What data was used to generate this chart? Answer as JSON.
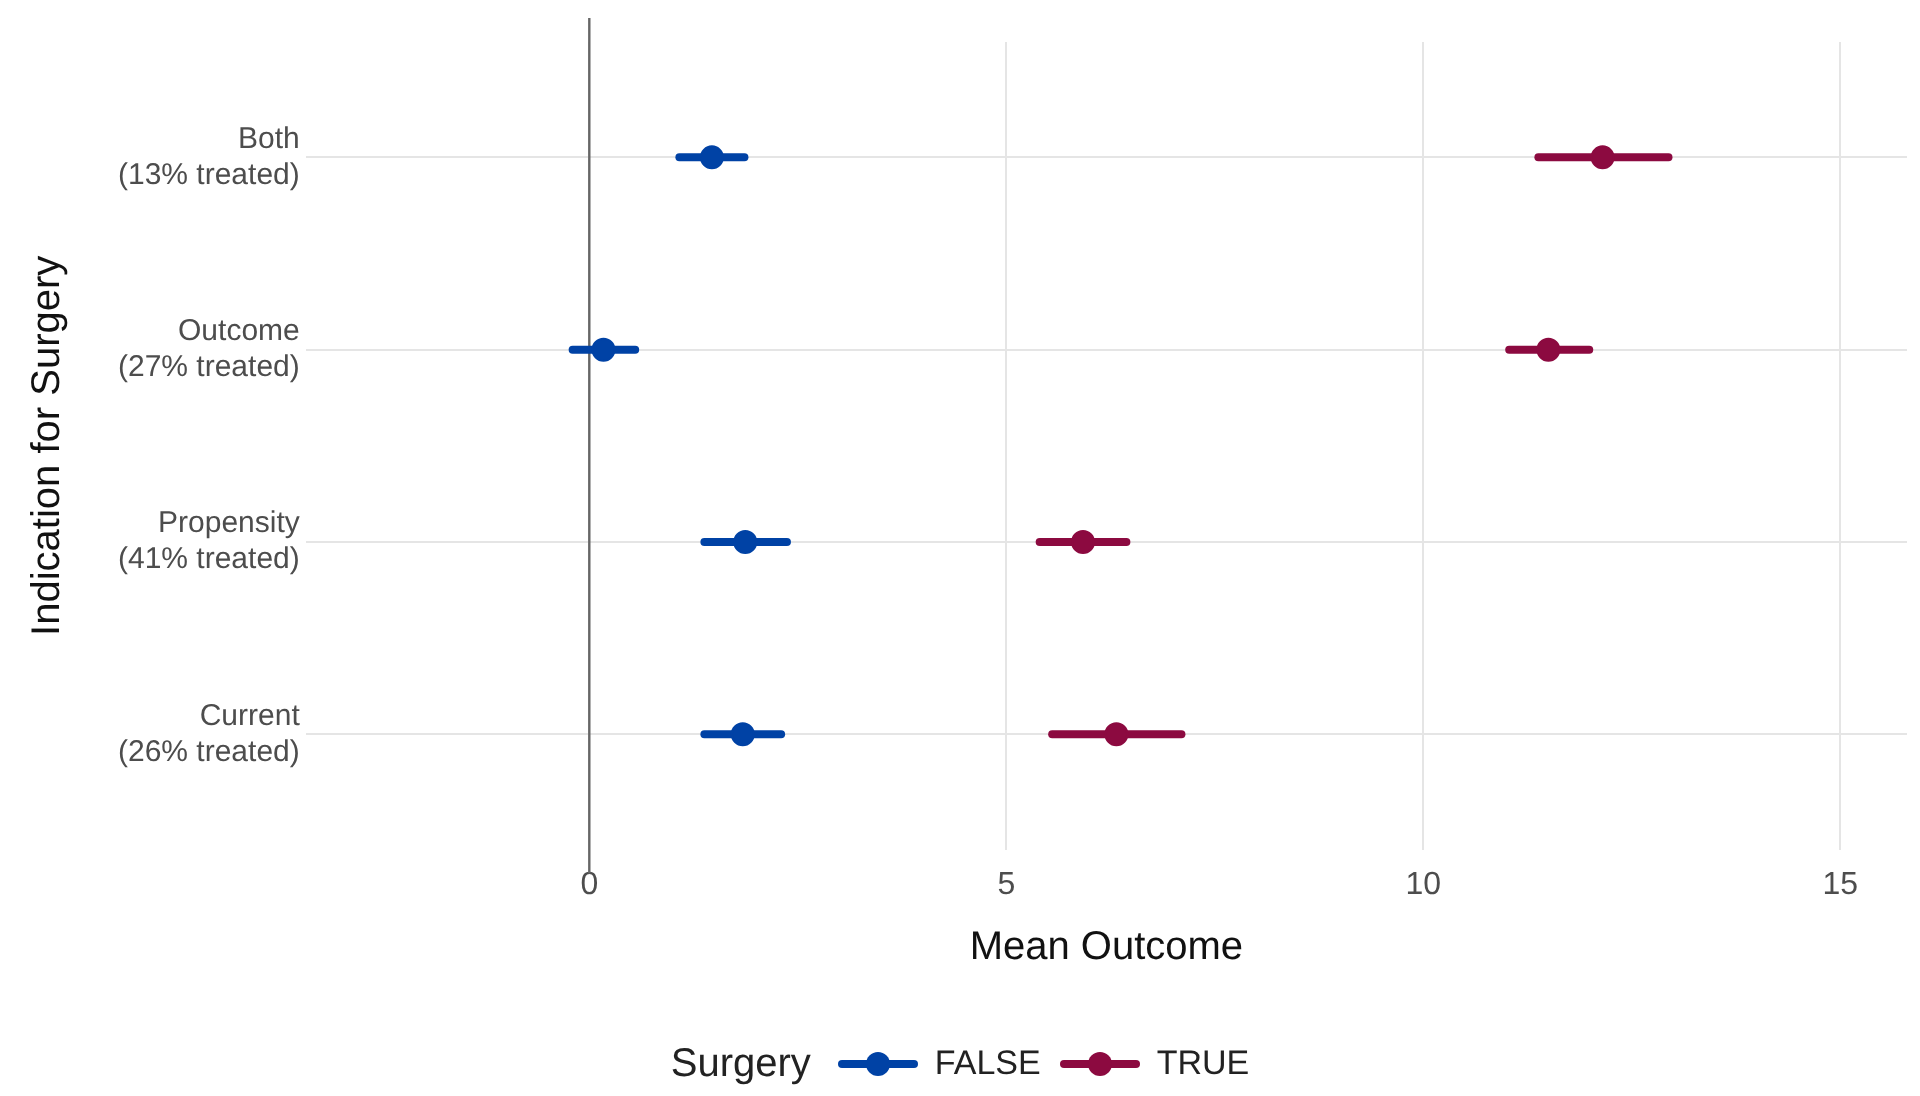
{
  "chart_data": {
    "type": "scatter",
    "orientation": "horizontal",
    "xlabel": "Mean Outcome",
    "ylabel": "Indication for Surgery",
    "legend_title": "Surgery",
    "legend": "bottom",
    "grid": true,
    "marker": "circle",
    "categories": [
      "Both\n(13% treated)",
      "Outcome\n(27% treated)",
      "Propensity\n(41% treated)",
      "Current\n(26% treated)"
    ],
    "xlim": [
      -3.4,
      15.8
    ],
    "xticks": [
      0,
      5,
      10,
      15
    ],
    "ref_lines": [
      {
        "axis": "x",
        "value": 0,
        "color": "#666666"
      }
    ],
    "series": [
      {
        "name": "FALSE",
        "color": "#0042a5",
        "values": [
          1.47,
          0.17,
          1.87,
          1.84
        ],
        "errors": [
          [
            1.08,
            1.86
          ],
          [
            -0.2,
            0.55
          ],
          [
            1.38,
            2.37
          ],
          [
            1.38,
            2.3
          ]
        ]
      },
      {
        "name": "TRUE",
        "color": "#8c0a40",
        "values": [
          12.15,
          11.5,
          5.92,
          6.32
        ],
        "errors": [
          [
            11.38,
            12.94
          ],
          [
            11.03,
            11.99
          ],
          [
            5.4,
            6.44
          ],
          [
            5.55,
            7.1
          ]
        ]
      }
    ]
  }
}
